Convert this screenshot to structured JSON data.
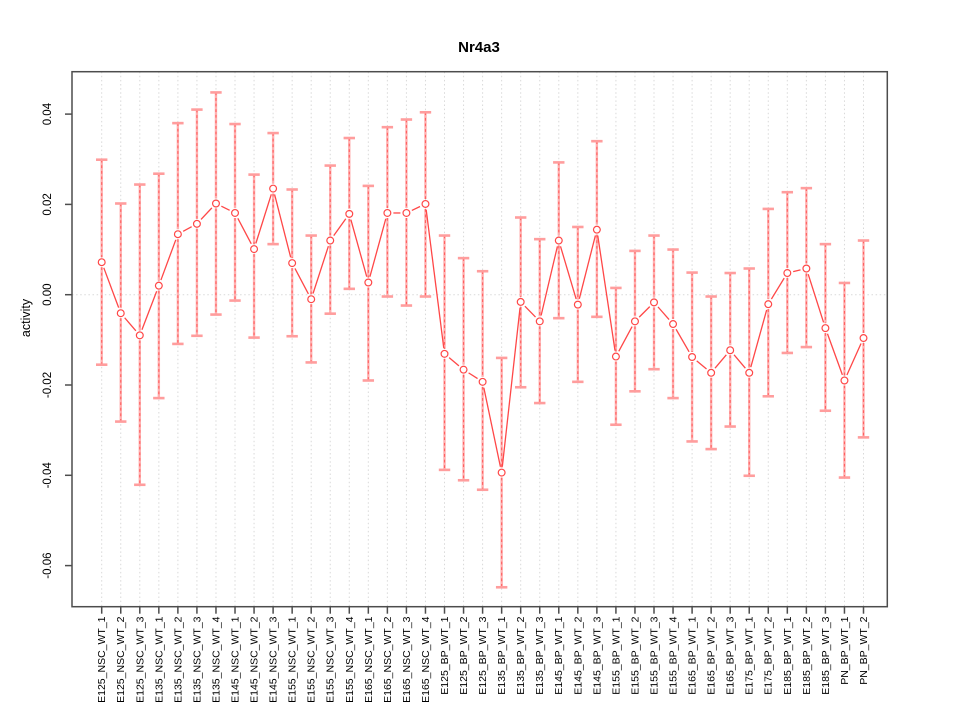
{
  "chart_data": {
    "type": "line",
    "title": "Nr4a3",
    "xlabel": "",
    "ylabel": "activity",
    "marker": "open-circle",
    "legend": "none",
    "grid": "dotted vertical gridline at every category; dotted horizontal line at y=0",
    "ylim": [
      -0.0698,
      0.0496
    ],
    "yticks": [
      0.04,
      0.02,
      0.0,
      -0.02,
      -0.04,
      -0.06
    ],
    "categories": [
      "E125_NSC_WT_1",
      "E125_NSC_WT_2",
      "E125_NSC_WT_3",
      "E135_NSC_WT_1",
      "E135_NSC_WT_2",
      "E135_NSC_WT_3",
      "E135_NSC_WT_4",
      "E145_NSC_WT_1",
      "E145_NSC_WT_2",
      "E145_NSC_WT_3",
      "E155_NSC_WT_1",
      "E155_NSC_WT_2",
      "E155_NSC_WT_3",
      "E155_NSC_WT_4",
      "E165_NSC_WT_1",
      "E165_NSC_WT_2",
      "E165_NSC_WT_3",
      "E165_NSC_WT_4",
      "E125_BP_WT_1",
      "E125_BP_WT_2",
      "E125_BP_WT_3",
      "E135_BP_WT_1",
      "E135_BP_WT_2",
      "E135_BP_WT_3",
      "E145_BP_WT_1",
      "E145_BP_WT_2",
      "E145_BP_WT_3",
      "E155_BP_WT_1",
      "E155_BP_WT_2",
      "E155_BP_WT_3",
      "E155_BP_WT_4",
      "E165_BP_WT_1",
      "E165_BP_WT_2",
      "E165_BP_WT_3",
      "E175_BP_WT_1",
      "E175_BP_WT_2",
      "E185_BP_WT_1",
      "E185_BP_WT_2",
      "E185_BP_WT_3",
      "PN_BP_WT_1",
      "PN_BP_WT_2"
    ],
    "series": [
      {
        "name": "activity",
        "values": [
          0.0072,
          -0.0041,
          -0.009,
          0.002,
          0.0134,
          0.0157,
          0.0202,
          0.0181,
          0.0101,
          0.0235,
          0.007,
          -0.001,
          0.012,
          0.0179,
          0.0027,
          0.0181,
          0.0181,
          0.0201,
          -0.0131,
          -0.0166,
          -0.0193,
          -0.0394,
          -0.0016,
          -0.0059,
          0.012,
          -0.0022,
          0.0144,
          -0.0137,
          -0.0059,
          -0.0017,
          -0.0065,
          -0.0138,
          -0.0173,
          -0.0123,
          -0.0173,
          -0.0021,
          0.0048,
          0.0058,
          -0.0074,
          -0.019,
          -0.0096
        ]
      },
      {
        "name": "ci_upper",
        "values": [
          0.0299,
          0.0202,
          0.0244,
          0.0268,
          0.038,
          0.041,
          0.0448,
          0.0378,
          0.0266,
          0.0358,
          0.0233,
          0.0131,
          0.0286,
          0.0347,
          0.0241,
          0.0371,
          0.0388,
          0.0404,
          0.0131,
          0.0081,
          0.0052,
          -0.014,
          0.0171,
          0.0123,
          0.0293,
          0.015,
          0.034,
          0.0015,
          0.0097,
          0.0131,
          0.01,
          0.0049,
          -0.0004,
          0.0048,
          0.0058,
          0.019,
          0.0227,
          0.0236,
          0.0112,
          0.0026,
          0.012
        ]
      },
      {
        "name": "ci_lower",
        "values": [
          -0.0155,
          -0.0281,
          -0.0421,
          -0.0229,
          -0.0109,
          -0.0091,
          -0.0044,
          -0.0013,
          -0.0095,
          0.0112,
          -0.0092,
          -0.015,
          -0.0042,
          0.0013,
          -0.019,
          -0.0004,
          -0.0024,
          -0.0004,
          -0.0388,
          -0.0411,
          -0.0432,
          -0.0648,
          -0.0205,
          -0.024,
          -0.0052,
          -0.0193,
          -0.0049,
          -0.0288,
          -0.0214,
          -0.0165,
          -0.0229,
          -0.0325,
          -0.0342,
          -0.0292,
          -0.0401,
          -0.0225,
          -0.0129,
          -0.0116,
          -0.0257,
          -0.0405,
          -0.0316
        ]
      }
    ],
    "colors": {
      "line": "#ff4747",
      "marker": "#ff4747",
      "errorbar_base": "#ffb0b0",
      "errorbar_dash": "#ff6060",
      "errorbar_cap": "#ff9d9d",
      "grid": "#d9d9d9",
      "axis": "#4d4d4d",
      "text": "#000000",
      "background": "#ffffff"
    }
  }
}
